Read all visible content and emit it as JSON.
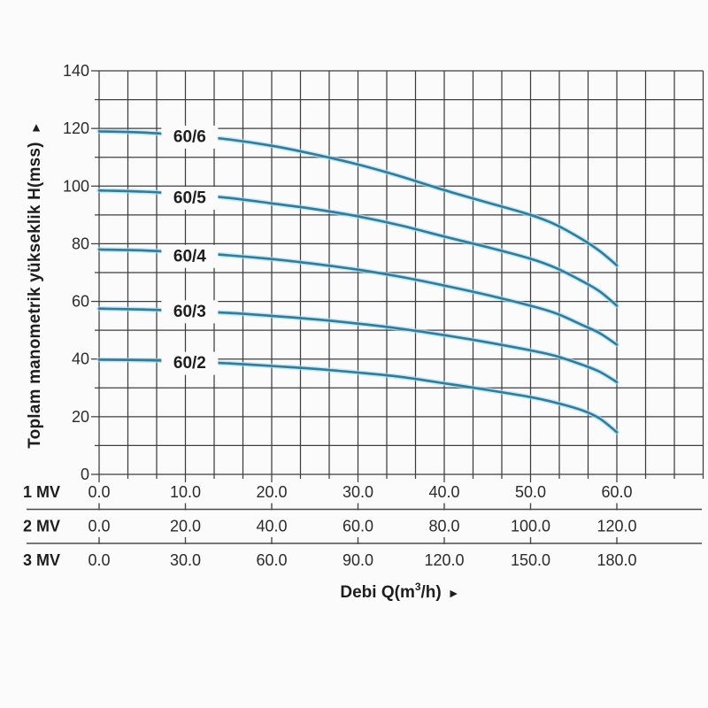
{
  "chart_data": {
    "type": "line",
    "title": "",
    "ylabel": {
      "text": "Toplam manometrik yükseklik H(mss)",
      "arrow": "►"
    },
    "xlabel": {
      "prefix": "Debi Q(m",
      "sup": "3",
      "suffix": "/h)",
      "arrow": "►"
    },
    "x_axis": {
      "data_min": 0,
      "data_max": 60,
      "major_step": 10,
      "minor_divisions_per_major": 3,
      "grid_extends_to": 70
    },
    "y_axis": {
      "min": 0,
      "max": 140,
      "grid_step": 10,
      "label_step": 20,
      "labels_top_down": [
        "140",
        "120",
        "100",
        "80",
        "60",
        "40",
        "20",
        "0"
      ]
    },
    "scale_rows": [
      {
        "label": "1 MV",
        "values": [
          "0.0",
          "10.0",
          "20.0",
          "30.0",
          "40.0",
          "50.0",
          "60.0"
        ]
      },
      {
        "label": "2 MV",
        "values": [
          "0.0",
          "20.0",
          "40.0",
          "60.0",
          "80.0",
          "100.0",
          "120.0"
        ]
      },
      {
        "label": "3 MV",
        "values": [
          "0.0",
          "30.0",
          "60.0",
          "90.0",
          "120.0",
          "150.0",
          "180.0"
        ]
      }
    ],
    "series": [
      {
        "name": "60/6",
        "label_q": 10.5,
        "label_h": 117.0,
        "points": [
          [
            0,
            119
          ],
          [
            5,
            118.6
          ],
          [
            10,
            117.6
          ],
          [
            15,
            116.2
          ],
          [
            20,
            114
          ],
          [
            25,
            111
          ],
          [
            30,
            107.5
          ],
          [
            35,
            103.3
          ],
          [
            40,
            98.6
          ],
          [
            45,
            94.3
          ],
          [
            50,
            90
          ],
          [
            53,
            86.5
          ],
          [
            56,
            81.5
          ],
          [
            58,
            77.5
          ],
          [
            60,
            72.5
          ]
        ]
      },
      {
        "name": "60/5",
        "label_q": 10.5,
        "label_h": 95.8,
        "points": [
          [
            0,
            98.5
          ],
          [
            5,
            98.1
          ],
          [
            10,
            97.2
          ],
          [
            15,
            95.9
          ],
          [
            20,
            94
          ],
          [
            25,
            92
          ],
          [
            30,
            89.5
          ],
          [
            35,
            86.3
          ],
          [
            40,
            82.5
          ],
          [
            45,
            78.8
          ],
          [
            50,
            74.8
          ],
          [
            53,
            71.5
          ],
          [
            56,
            67
          ],
          [
            58,
            63.5
          ],
          [
            60,
            58.5
          ]
        ]
      },
      {
        "name": "60/4",
        "label_q": 10.5,
        "label_h": 75.6,
        "points": [
          [
            0,
            78
          ],
          [
            5,
            77.7
          ],
          [
            10,
            77
          ],
          [
            15,
            76
          ],
          [
            20,
            74.7
          ],
          [
            25,
            73
          ],
          [
            30,
            71
          ],
          [
            35,
            68.5
          ],
          [
            40,
            65.5
          ],
          [
            45,
            62.2
          ],
          [
            50,
            58.5
          ],
          [
            53,
            55.8
          ],
          [
            56,
            51.8
          ],
          [
            58,
            49
          ],
          [
            60,
            45
          ]
        ]
      },
      {
        "name": "60/3",
        "label_q": 10.5,
        "label_h": 56.4,
        "points": [
          [
            0,
            57.5
          ],
          [
            5,
            57.2
          ],
          [
            10,
            56.7
          ],
          [
            15,
            56
          ],
          [
            20,
            55
          ],
          [
            25,
            53.8
          ],
          [
            30,
            52.3
          ],
          [
            35,
            50.5
          ],
          [
            40,
            48.3
          ],
          [
            45,
            45.8
          ],
          [
            50,
            43
          ],
          [
            53,
            41
          ],
          [
            56,
            38
          ],
          [
            58,
            35.6
          ],
          [
            60,
            32
          ]
        ]
      },
      {
        "name": "60/2",
        "label_q": 10.5,
        "label_h": 38.5,
        "points": [
          [
            0,
            39.8
          ],
          [
            5,
            39.6
          ],
          [
            10,
            39.2
          ],
          [
            15,
            38.5
          ],
          [
            20,
            37.6
          ],
          [
            25,
            36.6
          ],
          [
            30,
            35.3
          ],
          [
            35,
            33.8
          ],
          [
            40,
            31.6
          ],
          [
            45,
            29.3
          ],
          [
            50,
            26.8
          ],
          [
            53,
            24.8
          ],
          [
            56,
            22.2
          ],
          [
            58,
            19.4
          ],
          [
            60,
            14.6
          ]
        ]
      }
    ],
    "colors": {
      "curve": "#2c7d9e",
      "curve_halo": "#a9dbee",
      "grid": "#3c3e40",
      "text": "#1e1e1e",
      "tick_text": "#2b2b2b",
      "background": "#fbfbfb"
    },
    "legend_position": "labels-on-curves",
    "grid": true
  }
}
